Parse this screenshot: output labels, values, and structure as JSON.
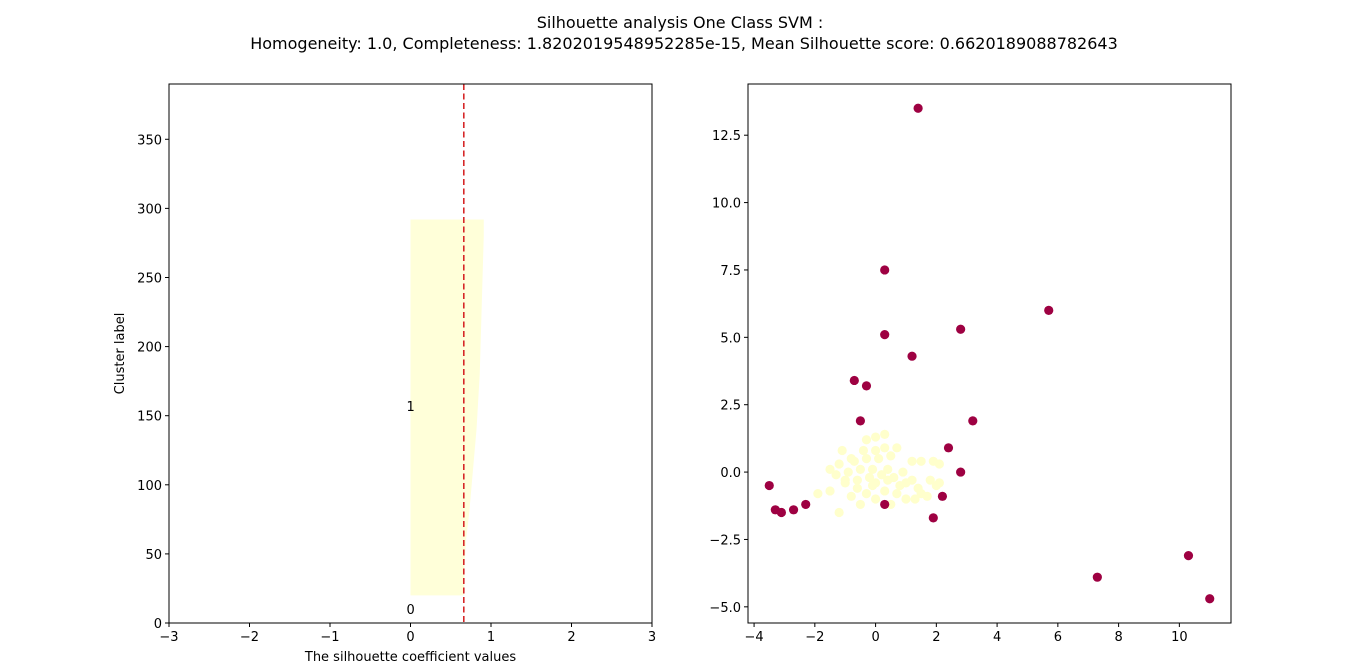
{
  "title_line1": "Silhouette analysis One Class SVM :",
  "title_line2": "Homogeneity: 1.0, Completeness: 1.8202019548952285e-15, Mean Silhouette score: 0.6620189088782643",
  "chart_data": [
    {
      "type": "bar",
      "subtype": "silhouette-plot",
      "xlabel": "The silhouette coefficient values",
      "ylabel": "Cluster label",
      "xlim": [
        -3,
        3
      ],
      "ylim": [
        0,
        390
      ],
      "xticks": [
        -3,
        -2,
        -1,
        0,
        1,
        2,
        3
      ],
      "yticks": [
        0,
        50,
        100,
        150,
        200,
        250,
        300,
        350
      ],
      "mean_silhouette": 0.6620189088782643,
      "mean_line_color": "#d62728",
      "clusters": [
        {
          "label": "0",
          "label_y": 10,
          "color": "#ffffd9",
          "profile": []
        },
        {
          "label": "1",
          "label_y": 157,
          "color": "#ffffd9",
          "profile": [
            [
              20,
              0.66
            ],
            [
              30,
              0.67
            ],
            [
              40,
              0.67
            ],
            [
              50,
              0.68
            ],
            [
              60,
              0.69
            ],
            [
              80,
              0.73
            ],
            [
              100,
              0.76
            ],
            [
              120,
              0.79
            ],
            [
              140,
              0.82
            ],
            [
              160,
              0.84
            ],
            [
              180,
              0.86
            ],
            [
              200,
              0.87
            ],
            [
              220,
              0.88
            ],
            [
              240,
              0.89
            ],
            [
              260,
              0.9
            ],
            [
              280,
              0.91
            ],
            [
              292,
              0.91
            ]
          ]
        }
      ]
    },
    {
      "type": "scatter",
      "xlim": [
        -4.2,
        11.7
      ],
      "ylim": [
        -5.6,
        14.4
      ],
      "xticks": [
        -4,
        -2,
        0,
        2,
        4,
        6,
        8,
        10
      ],
      "yticks": [
        -5.0,
        -2.5,
        0.0,
        2.5,
        5.0,
        7.5,
        10.0,
        12.5
      ],
      "series": [
        {
          "color": "#ffffcc",
          "points": [
            [
              -1.2,
              -1.5
            ],
            [
              -0.5,
              -1.2
            ],
            [
              0.0,
              -1.0
            ],
            [
              0.5,
              -1.2
            ],
            [
              1.0,
              -1.0
            ],
            [
              1.5,
              -0.8
            ],
            [
              2.0,
              -0.5
            ],
            [
              1.2,
              -0.3
            ],
            [
              0.8,
              -0.5
            ],
            [
              0.3,
              -0.7
            ],
            [
              -0.3,
              -0.8
            ],
            [
              -0.8,
              -0.9
            ],
            [
              -1.9,
              -0.8
            ],
            [
              -1.5,
              -0.7
            ],
            [
              -1.0,
              -0.4
            ],
            [
              -0.6,
              -0.3
            ],
            [
              -0.2,
              -0.2
            ],
            [
              0.2,
              -0.1
            ],
            [
              0.6,
              -0.2
            ],
            [
              1.0,
              -0.4
            ],
            [
              1.4,
              -0.6
            ],
            [
              1.8,
              -0.3
            ],
            [
              2.1,
              -0.4
            ],
            [
              -1.3,
              -0.1
            ],
            [
              -0.9,
              0.0
            ],
            [
              -0.5,
              0.1
            ],
            [
              -0.1,
              0.1
            ],
            [
              0.4,
              0.1
            ],
            [
              0.9,
              0.0
            ],
            [
              1.2,
              0.4
            ],
            [
              1.5,
              0.4
            ],
            [
              1.9,
              0.4
            ],
            [
              2.1,
              0.3
            ],
            [
              -1.2,
              0.3
            ],
            [
              -0.7,
              0.4
            ],
            [
              -0.3,
              0.5
            ],
            [
              0.1,
              0.5
            ],
            [
              0.5,
              0.6
            ],
            [
              -0.8,
              0.5
            ],
            [
              -0.4,
              0.8
            ],
            [
              0.0,
              0.8
            ],
            [
              0.3,
              0.9
            ],
            [
              0.7,
              0.9
            ],
            [
              -0.3,
              1.2
            ],
            [
              0.0,
              1.3
            ],
            [
              0.3,
              1.4
            ],
            [
              -1.0,
              -0.3
            ],
            [
              -0.6,
              -0.6
            ],
            [
              0.0,
              -0.4
            ],
            [
              0.7,
              -0.8
            ],
            [
              1.3,
              -1.0
            ],
            [
              -1.1,
              0.8
            ],
            [
              -0.1,
              -0.5
            ],
            [
              0.4,
              -0.3
            ],
            [
              1.7,
              -0.9
            ],
            [
              -1.5,
              0.1
            ]
          ]
        },
        {
          "color": "#9e0142",
          "points": [
            [
              1.4,
              13.5
            ],
            [
              0.3,
              7.5
            ],
            [
              5.7,
              6.0
            ],
            [
              0.3,
              5.1
            ],
            [
              2.8,
              5.3
            ],
            [
              1.2,
              4.3
            ],
            [
              -0.7,
              3.4
            ],
            [
              -0.3,
              3.2
            ],
            [
              -0.5,
              1.9
            ],
            [
              3.2,
              1.9
            ],
            [
              2.4,
              0.9
            ],
            [
              2.8,
              0.0
            ],
            [
              2.2,
              -0.9
            ],
            [
              0.3,
              -1.2
            ],
            [
              1.9,
              -1.7
            ],
            [
              -3.5,
              -0.5
            ],
            [
              -2.3,
              -1.2
            ],
            [
              -2.7,
              -1.4
            ],
            [
              -3.3,
              -1.4
            ],
            [
              -3.1,
              -1.5
            ],
            [
              7.3,
              -3.9
            ],
            [
              10.3,
              -3.1
            ],
            [
              11.0,
              -4.7
            ]
          ]
        }
      ]
    }
  ]
}
